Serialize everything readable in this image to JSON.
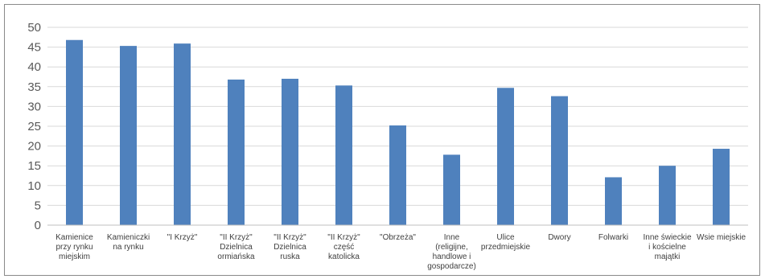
{
  "chart_data": {
    "type": "bar",
    "title": "",
    "xlabel": "",
    "ylabel": "",
    "ylim": [
      0,
      50
    ],
    "yticks": [
      0,
      5,
      10,
      15,
      20,
      25,
      30,
      35,
      40,
      45,
      50
    ],
    "grid": true,
    "legend": "none",
    "bar_color": "#4f81bd",
    "categories": [
      [
        "Kamienice",
        "przy rynku",
        "miejskim"
      ],
      [
        "Kamieniczki",
        "na rynku"
      ],
      [
        "\"I Krzyż\""
      ],
      [
        "\"II Krzyż\"",
        "Dzielnica",
        "ormiańska"
      ],
      [
        "\"II Krzyż\"",
        "Dzielnica",
        "ruska"
      ],
      [
        "\"II Krzyż\"",
        "część",
        "katolicka"
      ],
      [
        "\"Obrzeża\""
      ],
      [
        "Inne",
        "(religijne,",
        "handlowe i",
        "gospodarcze)"
      ],
      [
        "Ulice",
        "przedmiejskie"
      ],
      [
        "Dwory"
      ],
      [
        "Folwarki"
      ],
      [
        "Inne świeckie",
        "i kościelne",
        "majątki"
      ],
      [
        "Wsie miejskie"
      ]
    ],
    "values": [
      46.8,
      45.3,
      45.9,
      36.8,
      37.0,
      35.3,
      25.2,
      17.8,
      34.7,
      32.6,
      12.1,
      15.0,
      19.3
    ]
  }
}
